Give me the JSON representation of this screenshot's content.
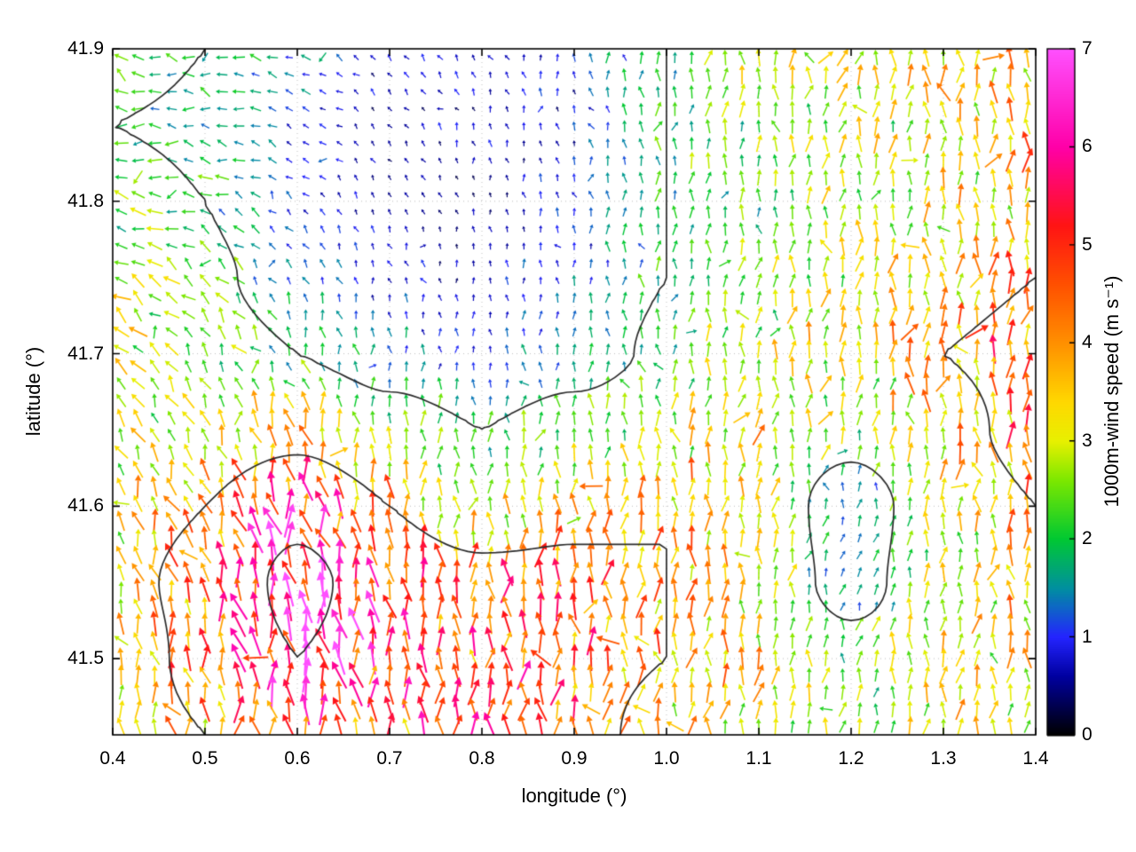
{
  "figure": {
    "background": "#ffffff"
  },
  "chart_data": {
    "type": "quiver",
    "title": "",
    "xlabel": "longitude (°)",
    "ylabel": "latitude (°)",
    "colorbar_label": "1000m-wind speed (m s⁻¹)",
    "xlim": [
      0.4,
      1.4
    ],
    "ylim": [
      41.45,
      41.9
    ],
    "grid_dotted": true,
    "x_ticks": [
      {
        "v": 0.4,
        "label": "0.4"
      },
      {
        "v": 0.5,
        "label": "0.5"
      },
      {
        "v": 0.6,
        "label": "0.6"
      },
      {
        "v": 0.7,
        "label": "0.7"
      },
      {
        "v": 0.8,
        "label": "0.8"
      },
      {
        "v": 0.9,
        "label": "0.9"
      },
      {
        "v": 1.0,
        "label": "1.0"
      },
      {
        "v": 1.1,
        "label": "1.1"
      },
      {
        "v": 1.2,
        "label": "1.2"
      },
      {
        "v": 1.3,
        "label": "1.3"
      },
      {
        "v": 1.4,
        "label": "1.4"
      }
    ],
    "y_ticks": [
      {
        "v": 41.5,
        "label": "41.5"
      },
      {
        "v": 41.6,
        "label": "41.6"
      },
      {
        "v": 41.7,
        "label": "41.7"
      },
      {
        "v": 41.8,
        "label": "41.8"
      },
      {
        "v": 41.9,
        "label": "41.9"
      }
    ],
    "colorbar_range": [
      0,
      7
    ],
    "colorbar_ticks": [
      {
        "v": 0,
        "label": "0"
      },
      {
        "v": 1,
        "label": "1"
      },
      {
        "v": 2,
        "label": "2"
      },
      {
        "v": 3,
        "label": "3"
      },
      {
        "v": 4,
        "label": "4"
      },
      {
        "v": 5,
        "label": "5"
      },
      {
        "v": 6,
        "label": "6"
      },
      {
        "v": 7,
        "label": "7"
      }
    ],
    "palette_stops": [
      [
        0.0,
        "#000000"
      ],
      [
        0.6,
        "#0000a0"
      ],
      [
        1.0,
        "#2424ff"
      ],
      [
        1.5,
        "#0090a0"
      ],
      [
        2.0,
        "#00c832"
      ],
      [
        2.6,
        "#7ce800"
      ],
      [
        3.0,
        "#e8f000"
      ],
      [
        3.4,
        "#ffd800"
      ],
      [
        4.0,
        "#ff9000"
      ],
      [
        4.6,
        "#ff5000"
      ],
      [
        5.2,
        "#ff1414"
      ],
      [
        6.0,
        "#ff00a8"
      ],
      [
        7.0,
        "#ff50ff"
      ]
    ],
    "quiver_grid": {
      "nx": 55,
      "ny": 40
    },
    "control_lons": [
      0.4,
      0.5,
      0.6,
      0.7,
      0.8,
      0.9,
      1.0,
      1.1,
      1.2,
      1.3,
      1.4
    ],
    "control_lats": [
      41.9,
      41.85,
      41.8,
      41.75,
      41.7,
      41.65,
      41.6,
      41.55,
      41.5,
      41.45
    ],
    "speed_field": [
      [
        2.5,
        2.0,
        1.5,
        0.8,
        0.8,
        1.0,
        2.0,
        3.0,
        3.0,
        3.5,
        3.5
      ],
      [
        2.0,
        1.8,
        1.0,
        0.6,
        0.7,
        0.9,
        2.0,
        2.5,
        3.0,
        3.0,
        4.0
      ],
      [
        2.5,
        2.0,
        1.0,
        0.6,
        0.5,
        1.0,
        2.0,
        2.2,
        2.8,
        3.2,
        3.5
      ],
      [
        3.0,
        2.2,
        1.5,
        0.8,
        0.7,
        1.2,
        2.0,
        2.5,
        3.0,
        3.5,
        4.0
      ],
      [
        3.0,
        2.5,
        2.0,
        1.5,
        1.0,
        1.5,
        2.2,
        3.0,
        3.2,
        4.0,
        4.5
      ],
      [
        3.0,
        3.0,
        3.5,
        2.5,
        2.0,
        2.5,
        3.0,
        3.2,
        2.5,
        3.5,
        4.5
      ],
      [
        3.2,
        4.0,
        5.5,
        4.0,
        3.0,
        3.5,
        4.0,
        3.0,
        1.2,
        3.0,
        4.0
      ],
      [
        3.5,
        4.5,
        6.5,
        5.0,
        4.5,
        4.5,
        4.0,
        3.0,
        1.5,
        3.0,
        3.5
      ],
      [
        3.0,
        4.5,
        6.0,
        5.0,
        5.0,
        4.5,
        4.0,
        3.5,
        2.5,
        3.0,
        3.5
      ],
      [
        3.0,
        4.0,
        5.0,
        4.5,
        5.0,
        4.5,
        3.5,
        3.0,
        2.5,
        3.0,
        3.2
      ]
    ],
    "direction_field_deg": [
      [
        180,
        180,
        160,
        140,
        120,
        100,
        90,
        90,
        80,
        90,
        100
      ],
      [
        180,
        170,
        150,
        130,
        110,
        100,
        90,
        85,
        80,
        90,
        95
      ],
      [
        170,
        160,
        140,
        120,
        100,
        95,
        90,
        85,
        85,
        90,
        90
      ],
      [
        150,
        140,
        120,
        105,
        95,
        90,
        90,
        85,
        85,
        90,
        90
      ],
      [
        130,
        120,
        105,
        95,
        90,
        90,
        90,
        85,
        85,
        90,
        90
      ],
      [
        115,
        110,
        100,
        95,
        90,
        90,
        90,
        85,
        85,
        90,
        90
      ],
      [
        110,
        105,
        100,
        95,
        90,
        90,
        90,
        85,
        80,
        90,
        90
      ],
      [
        105,
        100,
        100,
        95,
        90,
        90,
        85,
        85,
        80,
        85,
        90
      ],
      [
        100,
        100,
        95,
        95,
        90,
        90,
        85,
        85,
        80,
        85,
        90
      ],
      [
        100,
        95,
        95,
        90,
        90,
        85,
        85,
        80,
        80,
        85,
        90
      ]
    ],
    "contour_levels": [
      2,
      4,
      6
    ],
    "contour_color": "#2b2b2b"
  }
}
